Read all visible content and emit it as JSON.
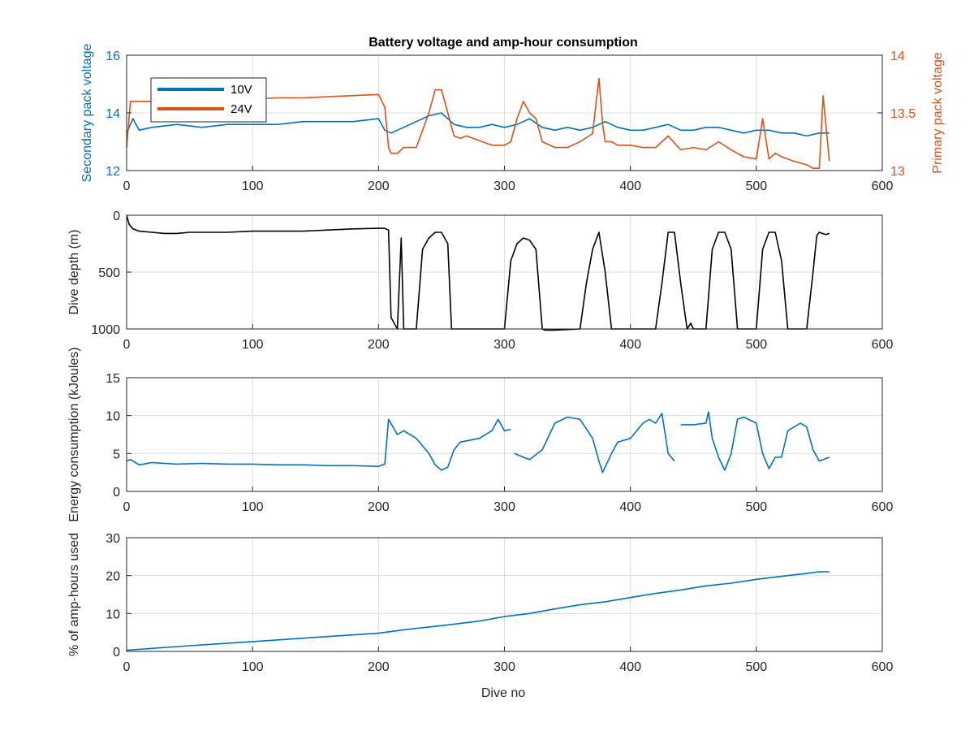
{
  "figure": {
    "title": "Battery voltage and amp-hour consumption",
    "xlabel": "Dive no"
  },
  "colors": {
    "blue": "#0072BD",
    "orange": "#D95319",
    "black": "#000000",
    "grid": "#dcdcdc",
    "axis": "#262626"
  },
  "chart_data": [
    {
      "type": "line",
      "title": "Battery voltage and amp-hour consumption",
      "xlabel": "",
      "ylabel": "Secondary pack voltage",
      "y2label": "Primary pack voltage",
      "xlim": [
        0,
        600
      ],
      "ylim": [
        12,
        16
      ],
      "y2lim": [
        13,
        14
      ],
      "xticks": [
        "0",
        "100",
        "200",
        "300",
        "400",
        "500",
        "600"
      ],
      "yticks": [
        "12",
        "14",
        "16"
      ],
      "y2ticks": [
        "13",
        "13.5",
        "14"
      ],
      "grid": true,
      "legend_position": "top-left",
      "series": [
        {
          "name": "10V",
          "axis": "left",
          "color": "#0072BD",
          "x": [
            0,
            5,
            10,
            20,
            40,
            60,
            80,
            100,
            120,
            140,
            160,
            180,
            200,
            205,
            210,
            220,
            230,
            240,
            250,
            260,
            270,
            280,
            290,
            300,
            310,
            320,
            330,
            340,
            350,
            360,
            370,
            380,
            390,
            400,
            410,
            420,
            430,
            440,
            450,
            460,
            470,
            480,
            490,
            500,
            510,
            520,
            530,
            540,
            550,
            558
          ],
          "y": [
            13.3,
            13.8,
            13.4,
            13.5,
            13.6,
            13.5,
            13.6,
            13.6,
            13.6,
            13.7,
            13.7,
            13.7,
            13.8,
            13.4,
            13.3,
            13.5,
            13.7,
            13.9,
            14.0,
            13.6,
            13.5,
            13.5,
            13.6,
            13.5,
            13.6,
            13.8,
            13.5,
            13.4,
            13.5,
            13.4,
            13.5,
            13.7,
            13.5,
            13.4,
            13.4,
            13.5,
            13.6,
            13.4,
            13.4,
            13.5,
            13.5,
            13.4,
            13.3,
            13.4,
            13.4,
            13.3,
            13.3,
            13.2,
            13.3,
            13.3
          ]
        },
        {
          "name": "24V",
          "axis": "right",
          "color": "#D95319",
          "x": [
            0,
            3,
            5,
            10,
            20,
            40,
            60,
            80,
            100,
            120,
            140,
            160,
            180,
            200,
            205,
            208,
            210,
            215,
            220,
            230,
            240,
            245,
            250,
            255,
            260,
            265,
            270,
            280,
            290,
            300,
            305,
            310,
            315,
            320,
            325,
            330,
            340,
            350,
            360,
            370,
            375,
            378,
            380,
            385,
            390,
            400,
            410,
            420,
            430,
            440,
            450,
            460,
            470,
            480,
            490,
            500,
            505,
            510,
            515,
            520,
            530,
            540,
            545,
            550,
            553,
            558
          ],
          "y": [
            13.2,
            13.6,
            13.6,
            13.6,
            13.6,
            13.6,
            13.6,
            13.62,
            13.62,
            13.63,
            13.63,
            13.64,
            13.65,
            13.66,
            13.55,
            13.2,
            13.15,
            13.15,
            13.2,
            13.2,
            13.5,
            13.7,
            13.7,
            13.5,
            13.3,
            13.28,
            13.3,
            13.26,
            13.22,
            13.22,
            13.25,
            13.45,
            13.6,
            13.5,
            13.45,
            13.25,
            13.2,
            13.2,
            13.25,
            13.32,
            13.8,
            13.4,
            13.25,
            13.25,
            13.22,
            13.22,
            13.2,
            13.2,
            13.3,
            13.18,
            13.2,
            13.18,
            13.25,
            13.18,
            13.12,
            13.1,
            13.45,
            13.1,
            13.15,
            13.12,
            13.08,
            13.05,
            13.02,
            13.02,
            13.65,
            13.08
          ]
        }
      ]
    },
    {
      "type": "line",
      "title": "",
      "xlabel": "",
      "ylabel": "Dive depth (m)",
      "xlim": [
        0,
        600
      ],
      "ylim": [
        0,
        1000
      ],
      "y_reversed": true,
      "xticks": [
        "0",
        "100",
        "200",
        "300",
        "400",
        "500",
        "600"
      ],
      "yticks": [
        "0",
        "500",
        "1000"
      ],
      "grid": true,
      "series": [
        {
          "color": "#000000",
          "x": [
            0,
            2,
            5,
            10,
            20,
            30,
            40,
            50,
            60,
            80,
            100,
            120,
            140,
            160,
            180,
            200,
            205,
            208,
            210,
            215,
            218,
            220,
            225,
            230,
            235,
            240,
            245,
            250,
            255,
            258,
            262,
            300,
            305,
            310,
            315,
            320,
            325,
            330,
            332,
            340,
            360,
            365,
            370,
            375,
            380,
            385,
            390,
            420,
            425,
            430,
            435,
            440,
            445,
            448,
            450,
            460,
            465,
            470,
            475,
            480,
            485,
            490,
            500,
            505,
            510,
            515,
            520,
            525,
            540,
            545,
            548,
            550,
            555,
            558
          ],
          "y": [
            0,
            80,
            120,
            140,
            150,
            160,
            160,
            150,
            150,
            150,
            140,
            140,
            140,
            130,
            120,
            115,
            115,
            130,
            900,
            1000,
            200,
            1000,
            1000,
            1000,
            300,
            200,
            150,
            150,
            250,
            1000,
            1000,
            1000,
            400,
            250,
            200,
            220,
            300,
            1000,
            1010,
            1010,
            1000,
            600,
            300,
            150,
            500,
            1000,
            1000,
            1000,
            600,
            150,
            150,
            600,
            1000,
            950,
            1000,
            1000,
            300,
            150,
            150,
            300,
            1000,
            1000,
            1000,
            300,
            150,
            150,
            400,
            1000,
            1000,
            500,
            180,
            150,
            170,
            160
          ]
        }
      ]
    },
    {
      "type": "line",
      "title": "",
      "xlabel": "",
      "ylabel": "Energy consumption (kJoules)",
      "xlim": [
        0,
        600
      ],
      "ylim": [
        0,
        15
      ],
      "xticks": [
        "0",
        "100",
        "200",
        "300",
        "400",
        "500",
        "600"
      ],
      "yticks": [
        "0",
        "5",
        "10",
        "15"
      ],
      "grid": true,
      "series": [
        {
          "color": "#0072BD",
          "x": [
            0,
            3,
            10,
            20,
            40,
            60,
            80,
            100,
            120,
            140,
            160,
            180,
            200,
            205,
            208,
            215,
            220,
            230,
            240,
            245,
            250,
            255,
            260,
            265,
            280,
            290,
            295,
            300,
            305,
            null,
            308,
            315,
            320,
            330,
            340,
            350,
            360,
            370,
            375,
            378,
            385,
            390,
            400,
            410,
            415,
            420,
            425,
            430,
            435,
            null,
            440,
            450,
            460,
            462,
            465,
            470,
            475,
            480,
            485,
            490,
            500,
            505,
            510,
            515,
            520,
            525,
            535,
            540,
            545,
            550,
            558
          ],
          "y": [
            4.0,
            4.2,
            3.5,
            3.8,
            3.6,
            3.7,
            3.6,
            3.6,
            3.5,
            3.5,
            3.4,
            3.4,
            3.3,
            3.6,
            9.5,
            7.5,
            8.0,
            7.0,
            5.0,
            3.5,
            2.8,
            3.2,
            5.5,
            6.5,
            7.0,
            8.0,
            9.5,
            8.0,
            8.2,
            null,
            5.0,
            4.5,
            4.2,
            5.5,
            9.0,
            9.8,
            9.5,
            7.0,
            4.0,
            2.5,
            5.0,
            6.5,
            7.0,
            9.0,
            9.5,
            9.0,
            10.3,
            5.0,
            4.0,
            null,
            8.8,
            8.8,
            9.0,
            10.5,
            7.0,
            4.5,
            2.8,
            5.0,
            9.5,
            9.8,
            9.0,
            5.0,
            3.0,
            4.5,
            4.5,
            8.0,
            9.0,
            8.5,
            5.5,
            4.0,
            4.5
          ]
        }
      ]
    },
    {
      "type": "line",
      "title": "",
      "xlabel": "Dive no",
      "ylabel": "% of amp-hours used",
      "xlim": [
        0,
        600
      ],
      "ylim": [
        0,
        30
      ],
      "xticks": [
        "0",
        "100",
        "200",
        "300",
        "400",
        "500",
        "600"
      ],
      "yticks": [
        "0",
        "10",
        "20",
        "30"
      ],
      "grid": true,
      "series": [
        {
          "color": "#0072BD",
          "x": [
            0,
            50,
            100,
            150,
            200,
            220,
            250,
            280,
            300,
            320,
            340,
            360,
            380,
            400,
            420,
            440,
            460,
            480,
            500,
            520,
            540,
            550,
            558
          ],
          "y": [
            0.3,
            1.5,
            2.6,
            3.7,
            4.8,
            5.7,
            6.8,
            8.0,
            9.2,
            10.0,
            11.2,
            12.3,
            13.1,
            14.2,
            15.3,
            16.2,
            17.3,
            18.0,
            19.0,
            19.8,
            20.6,
            21.0,
            21.0
          ]
        }
      ]
    }
  ]
}
